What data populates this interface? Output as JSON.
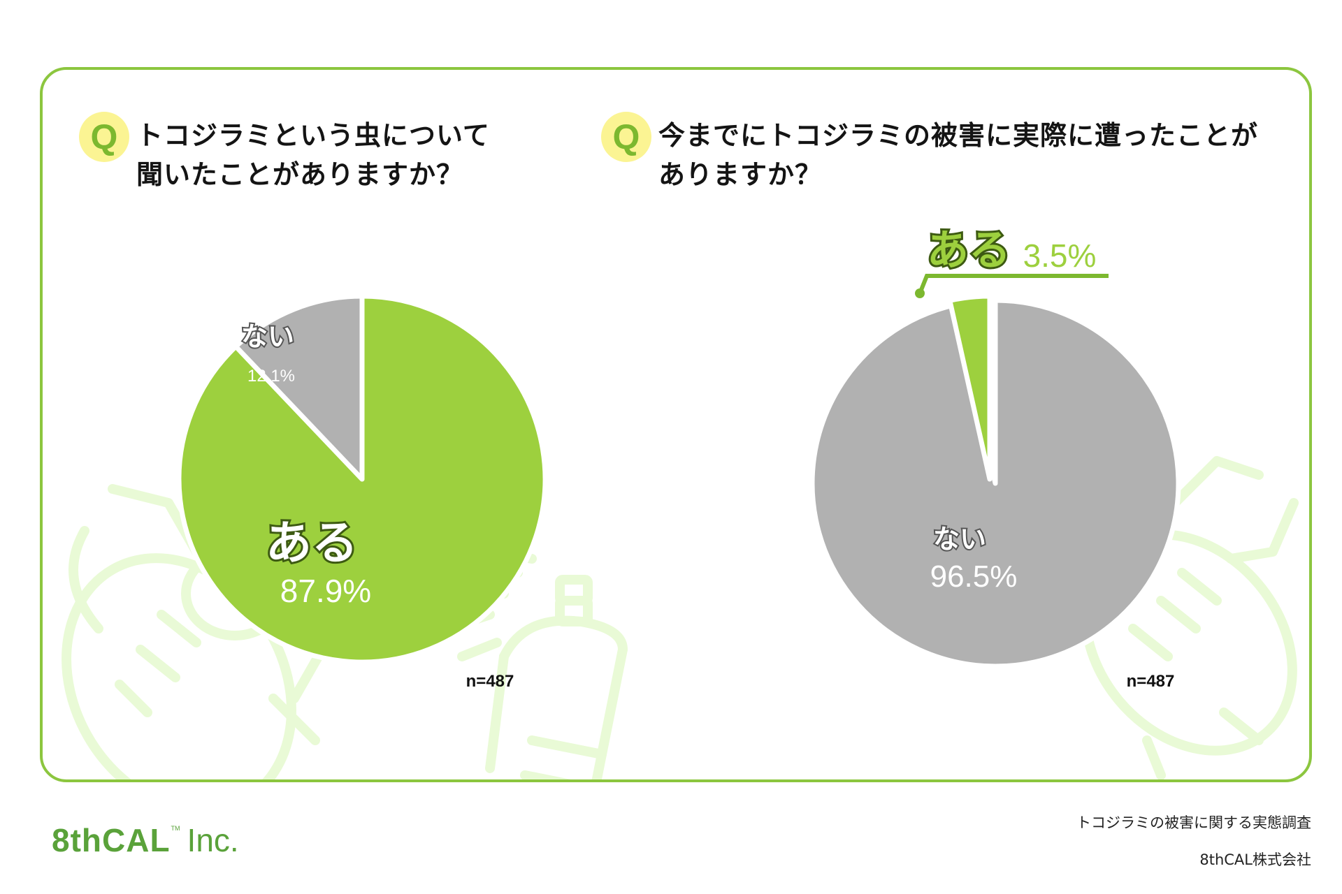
{
  "questions": [
    {
      "badge": "Q",
      "lines": [
        "トコジラミという虫について",
        "聞いたことがありますか？"
      ]
    },
    {
      "badge": "Q",
      "lines": [
        "今までにトコジラミの被害に実際に遭ったことが",
        "ありますか？"
      ]
    }
  ],
  "colors": {
    "green": "#9dd03e",
    "gray": "#b1b1b1",
    "border": "#8cc63f",
    "badge": "#fbf493",
    "deco": "#e9fad6"
  },
  "chart_data": [
    {
      "type": "pie",
      "title": "トコジラミという虫について聞いたことがありますか？",
      "slices": [
        {
          "label": "ある",
          "value": 87.9,
          "value_text": "87.9%",
          "color": "#9dd03e"
        },
        {
          "label": "ない",
          "value": 12.1,
          "value_text": "12.1%",
          "color": "#b1b1b1"
        }
      ],
      "n_text": "n=487"
    },
    {
      "type": "pie",
      "title": "今までにトコジラミの被害に実際に遭ったことがありますか？",
      "slices": [
        {
          "label": "ある",
          "value": 3.5,
          "value_text": "3.5%",
          "color": "#9dd03e"
        },
        {
          "label": "ない",
          "value": 96.5,
          "value_text": "96.5%",
          "color": "#b1b1b1"
        }
      ],
      "n_text": "n=487"
    }
  ],
  "footer": {
    "survey_title": "トコジラミの被害に関する実態調査",
    "organization": "8thCAL株式会社",
    "logo": {
      "main": "8thCAL",
      "tm": "TM",
      "suffix": "Inc."
    }
  }
}
